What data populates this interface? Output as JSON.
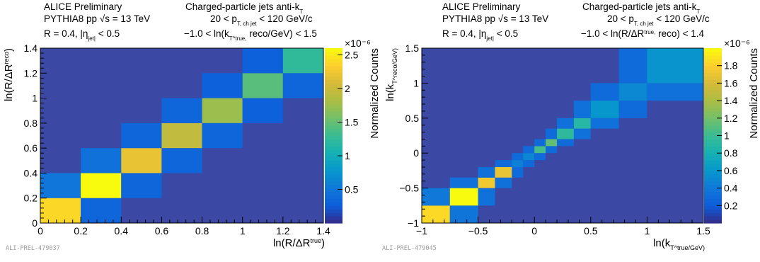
{
  "chart_data": [
    {
      "type": "heatmap",
      "header": {
        "line1_left": "ALICE Preliminary",
        "line2_left": "PYTHIA8 pp  √s = 13 TeV",
        "line3_left": "R = 0.4, |η_jet| < 0.5",
        "line1_right": "Charged-particle jets anti-k_T",
        "line2_right": "20 < p_T, ch jet < 120 GeV/c",
        "line3_right": "−1.0 < ln(k_T^true, reco/GeV) < 1.5"
      },
      "xlabel": "ln(R/ΔR^true)",
      "ylabel": "ln(R/ΔR^reco)",
      "zlabel": "Normalized Counts",
      "z_exponent": "×10⁻⁶",
      "id_label": "ALI-PREL-479037",
      "xlim": [
        0,
        1.4
      ],
      "ylim": [
        0,
        1.4
      ],
      "zlim": [
        0,
        2.6
      ],
      "x_bin_edges": [
        0,
        0.2,
        0.4,
        0.6,
        0.8,
        1.0,
        1.2,
        1.4
      ],
      "y_bin_edges": [
        0,
        0.2,
        0.4,
        0.6,
        0.8,
        1.0,
        1.2,
        1.4
      ],
      "x_ticks": [
        "0",
        "0.2",
        "0.4",
        "0.6",
        "0.8",
        "1",
        "1.2",
        "1.4"
      ],
      "y_ticks": [
        "0",
        "0.2",
        "0.4",
        "0.6",
        "0.8",
        "1",
        "1.2",
        "1.4"
      ],
      "z_ticks": [
        "0.5",
        "1",
        "1.5",
        "2",
        "2.5"
      ],
      "cells": [
        [
          0,
          0,
          2.4
        ],
        [
          1,
          0,
          0.35
        ],
        [
          0,
          1,
          0.5
        ],
        [
          1,
          1,
          2.6
        ],
        [
          2,
          1,
          0.35
        ],
        [
          1,
          2,
          0.45
        ],
        [
          2,
          2,
          2.2
        ],
        [
          3,
          2,
          0.35
        ],
        [
          2,
          3,
          0.35
        ],
        [
          3,
          3,
          1.95
        ],
        [
          4,
          3,
          0.35
        ],
        [
          3,
          4,
          0.35
        ],
        [
          4,
          4,
          1.75
        ],
        [
          5,
          4,
          0.3
        ],
        [
          4,
          5,
          0.3
        ],
        [
          5,
          5,
          1.45
        ],
        [
          6,
          5,
          0.35
        ],
        [
          5,
          6,
          0.3
        ],
        [
          6,
          6,
          1.25
        ]
      ]
    },
    {
      "type": "heatmap",
      "header": {
        "line1_left": "ALICE Preliminary",
        "line2_left": "PYTHIA8 pp  √s = 13 TeV",
        "line3_left": "R = 0.4, |η_jet| < 0.5",
        "line1_right": "Charged-particle jets anti-k_T",
        "line2_right": "20 < p_T, ch jet < 120 GeV/c",
        "line3_right": "−1.0 < ln(R/ΔR^true, reco) < 1.4"
      },
      "xlabel": "ln(k_T^true/GeV)",
      "ylabel": "ln(k_T^reco/GeV)",
      "zlabel": "Normalized Counts",
      "z_exponent": "×10⁻⁶",
      "id_label": "ALI-PREL-479045",
      "xlim": [
        -1,
        1.5
      ],
      "ylim": [
        -1,
        1.5
      ],
      "zlim": [
        0,
        2.0
      ],
      "x_bin_edges": [
        -1.0,
        -0.75,
        -0.5,
        -0.35,
        -0.2,
        -0.1,
        0.0,
        0.1,
        0.2,
        0.35,
        0.5,
        0.75,
        1.0,
        1.5
      ],
      "y_bin_edges": [
        -1.0,
        -0.75,
        -0.5,
        -0.35,
        -0.2,
        -0.1,
        0.0,
        0.1,
        0.2,
        0.35,
        0.5,
        0.75,
        1.0,
        1.5
      ],
      "x_ticks": [
        "−1",
        "−0.5",
        "0",
        "0.5",
        "1",
        "1.5"
      ],
      "y_ticks": [
        "−1",
        "−0.5",
        "0",
        "0.5",
        "1",
        "1.5"
      ],
      "z_ticks": [
        "0.2",
        "0.4",
        "0.6",
        "0.8",
        "1",
        "1.2",
        "1.4",
        "1.6",
        "1.8"
      ],
      "cells": [
        [
          0,
          0,
          1.85
        ],
        [
          1,
          0,
          0.38
        ],
        [
          0,
          1,
          0.4
        ],
        [
          1,
          1,
          2.0
        ],
        [
          2,
          1,
          0.35
        ],
        [
          1,
          2,
          0.35
        ],
        [
          2,
          2,
          1.75
        ],
        [
          3,
          2,
          0.35
        ],
        [
          2,
          3,
          0.35
        ],
        [
          3,
          3,
          1.7
        ],
        [
          4,
          3,
          0.3
        ],
        [
          3,
          4,
          0.3
        ],
        [
          4,
          4,
          0.45
        ],
        [
          5,
          4,
          0.3
        ],
        [
          4,
          5,
          0.3
        ],
        [
          5,
          5,
          0.5
        ],
        [
          6,
          5,
          0.3
        ],
        [
          5,
          6,
          0.3
        ],
        [
          6,
          6,
          1.05
        ],
        [
          7,
          6,
          0.3
        ],
        [
          6,
          7,
          0.3
        ],
        [
          7,
          7,
          1.15
        ],
        [
          8,
          7,
          0.3
        ],
        [
          7,
          8,
          0.3
        ],
        [
          8,
          8,
          0.95
        ],
        [
          9,
          8,
          0.35
        ],
        [
          8,
          9,
          0.35
        ],
        [
          9,
          9,
          0.9
        ],
        [
          10,
          9,
          0.35
        ],
        [
          9,
          10,
          0.35
        ],
        [
          10,
          10,
          0.6
        ],
        [
          11,
          10,
          0.3
        ],
        [
          10,
          11,
          0.3
        ],
        [
          11,
          11,
          0.5
        ],
        [
          12,
          11,
          0.35
        ],
        [
          11,
          12,
          0.3
        ],
        [
          12,
          12,
          0.58
        ]
      ]
    }
  ]
}
